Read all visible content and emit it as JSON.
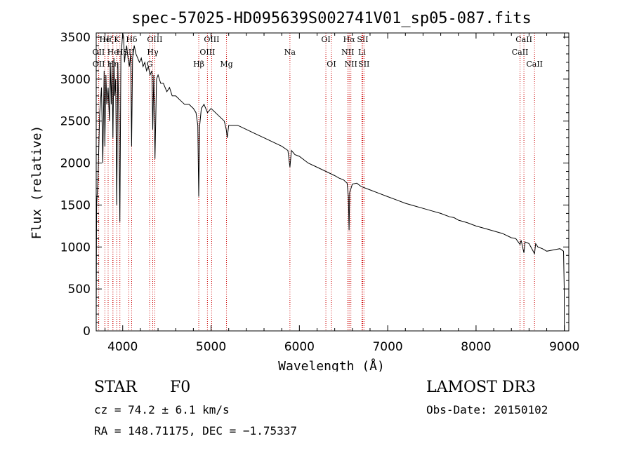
{
  "chart_data": {
    "type": "line",
    "title": "spec-57025-HD095639S002741V01_sp05-087.fits",
    "xlabel": "Wavelength (Å)",
    "ylabel": "Flux (relative)",
    "xlim": [
      3700,
      9050
    ],
    "ylim": [
      0,
      3550
    ],
    "xticks": [
      4000,
      5000,
      6000,
      7000,
      8000,
      9000
    ],
    "yticks": [
      0,
      500,
      1000,
      1500,
      2000,
      2500,
      3000,
      3500
    ],
    "line_color": "#000000",
    "marker_color": "#cc0000",
    "series": [
      {
        "name": "flux",
        "x": [
          3700,
          3705,
          3720,
          3740,
          3760,
          3775,
          3790,
          3798,
          3810,
          3820,
          3835,
          3850,
          3860,
          3870,
          3880,
          3889,
          3900,
          3910,
          3920,
          3933,
          3945,
          3955,
          3968,
          3980,
          3990,
          4000,
          4010,
          4020,
          4030,
          4045,
          4060,
          4075,
          4090,
          4101,
          4112,
          4130,
          4150,
          4170,
          4190,
          4210,
          4230,
          4250,
          4270,
          4290,
          4310,
          4330,
          4340,
          4352,
          4365,
          4383,
          4400,
          4430,
          4460,
          4500,
          4530,
          4560,
          4600,
          4650,
          4700,
          4750,
          4800,
          4830,
          4850,
          4861,
          4872,
          4890,
          4920,
          4960,
          5000,
          5050,
          5100,
          5150,
          5172,
          5183,
          5200,
          5250,
          5300,
          5400,
          5500,
          5600,
          5700,
          5800,
          5870,
          5893,
          5910,
          5950,
          6000,
          6100,
          6200,
          6300,
          6400,
          6450,
          6500,
          6540,
          6555,
          6563,
          6570,
          6585,
          6600,
          6650,
          6700,
          6800,
          6900,
          7000,
          7100,
          7200,
          7300,
          7400,
          7500,
          7600,
          7700,
          7750,
          7800,
          7900,
          8000,
          8100,
          8200,
          8300,
          8400,
          8450,
          8498,
          8510,
          8542,
          8555,
          8580,
          8600,
          8662,
          8675,
          8700,
          8750,
          8800,
          8850,
          8900,
          8950,
          8990,
          8998,
          9000
        ],
        "values": [
          200,
          1500,
          1800,
          2600,
          2900,
          2000,
          3100,
          2200,
          3050,
          2700,
          2900,
          2500,
          3200,
          2700,
          3150,
          2300,
          3250,
          2800,
          3000,
          1500,
          3200,
          2600,
          1300,
          3300,
          3400,
          3600,
          3500,
          3200,
          3300,
          3400,
          3250,
          3150,
          3300,
          2200,
          3250,
          3400,
          3300,
          3250,
          3200,
          3250,
          3150,
          3200,
          3100,
          3150,
          3050,
          3100,
          2400,
          3050,
          2050,
          3000,
          3050,
          2950,
          2950,
          2850,
          2900,
          2800,
          2800,
          2750,
          2700,
          2700,
          2650,
          2600,
          2450,
          1600,
          2450,
          2650,
          2700,
          2600,
          2650,
          2600,
          2550,
          2500,
          2400,
          2300,
          2450,
          2450,
          2450,
          2400,
          2350,
          2300,
          2250,
          2200,
          2150,
          1950,
          2150,
          2100,
          2080,
          2000,
          1950,
          1900,
          1850,
          1820,
          1800,
          1760,
          1600,
          1200,
          1650,
          1700,
          1750,
          1760,
          1720,
          1680,
          1640,
          1600,
          1560,
          1520,
          1490,
          1460,
          1430,
          1400,
          1360,
          1350,
          1320,
          1290,
          1250,
          1220,
          1190,
          1160,
          1110,
          1100,
          1030,
          1080,
          930,
          1060,
          1050,
          1040,
          920,
          1040,
          1000,
          980,
          950,
          960,
          970,
          980,
          950,
          500,
          0
        ]
      }
    ],
    "lines": [
      {
        "label": "Hϵ",
        "wavelength": 3798,
        "row": 0
      },
      {
        "label": "OII",
        "wavelength": 3727,
        "row": 1
      },
      {
        "label": "OII",
        "wavelength": 3729,
        "row": 2
      },
      {
        "label": "Hζ",
        "wavelength": 3835,
        "row": 0
      },
      {
        "label": "He",
        "wavelength": 3889,
        "row": 1
      },
      {
        "label": "Hη",
        "wavelength": 3889,
        "row": 2
      },
      {
        "label": "K",
        "wavelength": 3933,
        "row": 0
      },
      {
        "label": "H",
        "wavelength": 3968,
        "row": 1
      },
      {
        "label": "SII",
        "wavelength": 4069,
        "row": 1
      },
      {
        "label": "Hδ",
        "wavelength": 4101,
        "row": 0
      },
      {
        "label": "OIII",
        "wavelength": 4363,
        "row": 0
      },
      {
        "label": "Hγ",
        "wavelength": 4340,
        "row": 1
      },
      {
        "label": "G",
        "wavelength": 4305,
        "row": 2
      },
      {
        "label": "Hβ",
        "wavelength": 4861,
        "row": 2
      },
      {
        "label": "OIII",
        "wavelength": 5007,
        "row": 0
      },
      {
        "label": "OIII",
        "wavelength": 4959,
        "row": 1
      },
      {
        "label": "Mg",
        "wavelength": 5175,
        "row": 2
      },
      {
        "label": "Na",
        "wavelength": 5893,
        "row": 1
      },
      {
        "label": "OI",
        "wavelength": 6300,
        "row": 0
      },
      {
        "label": "OI",
        "wavelength": 6363,
        "row": 2
      },
      {
        "label": "Hα",
        "wavelength": 6563,
        "row": 0
      },
      {
        "label": "NII",
        "wavelength": 6548,
        "row": 1
      },
      {
        "label": "NII",
        "wavelength": 6583,
        "row": 2
      },
      {
        "label": "SII",
        "wavelength": 6717,
        "row": 0
      },
      {
        "label": "Li",
        "wavelength": 6708,
        "row": 1
      },
      {
        "label": "SII",
        "wavelength": 6731,
        "row": 2
      },
      {
        "label": "CaII",
        "wavelength": 8542,
        "row": 0
      },
      {
        "label": "CaII",
        "wavelength": 8498,
        "row": 1
      },
      {
        "label": "CaII",
        "wavelength": 8662,
        "row": 2
      }
    ]
  },
  "info": {
    "object_class": "STAR",
    "subclass": "F0",
    "survey": "LAMOST DR3",
    "cz": "cz = 74.2 ± 6.1 km/s",
    "obs_date": "Obs-Date: 20150102",
    "coords": "RA = 148.71175, DEC =  −1.75337"
  }
}
